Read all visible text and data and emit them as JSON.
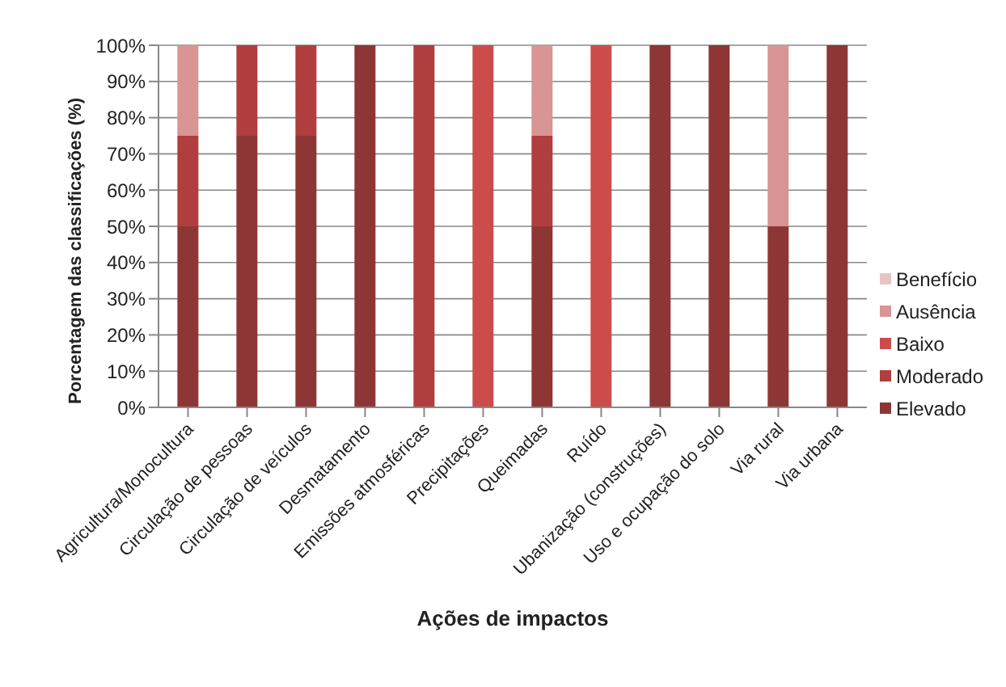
{
  "chart_data": {
    "type": "bar",
    "stacked": true,
    "xlabel": "Ações de impactos",
    "ylabel": "Porcentagem das classificações (%)",
    "categories": [
      "Agricultura/Monocultura",
      "Circulação de pessoas",
      "Circulação de veículos",
      "Desmatamento",
      "Emissões atmosféricas",
      "Precipitações",
      "Queimadas",
      "Ruído",
      "Ubanização (construções)",
      "Uso e ocupação do solo",
      "Via rural",
      "Via urbana"
    ],
    "series": [
      {
        "name": "Elevado",
        "color": "#8e3636",
        "values": [
          50,
          75,
          75,
          100,
          0,
          0,
          50,
          0,
          100,
          100,
          50,
          100
        ]
      },
      {
        "name": "Moderado",
        "color": "#b03e3e",
        "values": [
          25,
          25,
          25,
          0,
          100,
          0,
          25,
          0,
          0,
          0,
          0,
          0
        ]
      },
      {
        "name": "Baixo",
        "color": "#cc4c4c",
        "values": [
          0,
          0,
          0,
          0,
          0,
          100,
          0,
          100,
          0,
          0,
          0,
          0
        ]
      },
      {
        "name": "Ausência",
        "color": "#d99494",
        "values": [
          25,
          0,
          0,
          0,
          0,
          0,
          25,
          0,
          0,
          0,
          50,
          0
        ]
      },
      {
        "name": "Benefício",
        "color": "#e8c4c4",
        "values": [
          0,
          0,
          0,
          0,
          0,
          0,
          0,
          0,
          0,
          0,
          0,
          0
        ]
      }
    ],
    "ylim": [
      0,
      100
    ],
    "yticks": [
      {
        "value": 0,
        "label": "0%"
      },
      {
        "value": 10,
        "label": "10%"
      },
      {
        "value": 20,
        "label": "20%"
      },
      {
        "value": 30,
        "label": "30%"
      },
      {
        "value": 40,
        "label": "40%"
      },
      {
        "value": 50,
        "label": "50%"
      },
      {
        "value": 60,
        "label": "60%"
      },
      {
        "value": 70,
        "label": "70%"
      },
      {
        "value": 80,
        "label": "80%"
      },
      {
        "value": 90,
        "label": "90%"
      },
      {
        "value": 100,
        "label": "100%"
      }
    ],
    "grid": "y",
    "legend": "right"
  }
}
